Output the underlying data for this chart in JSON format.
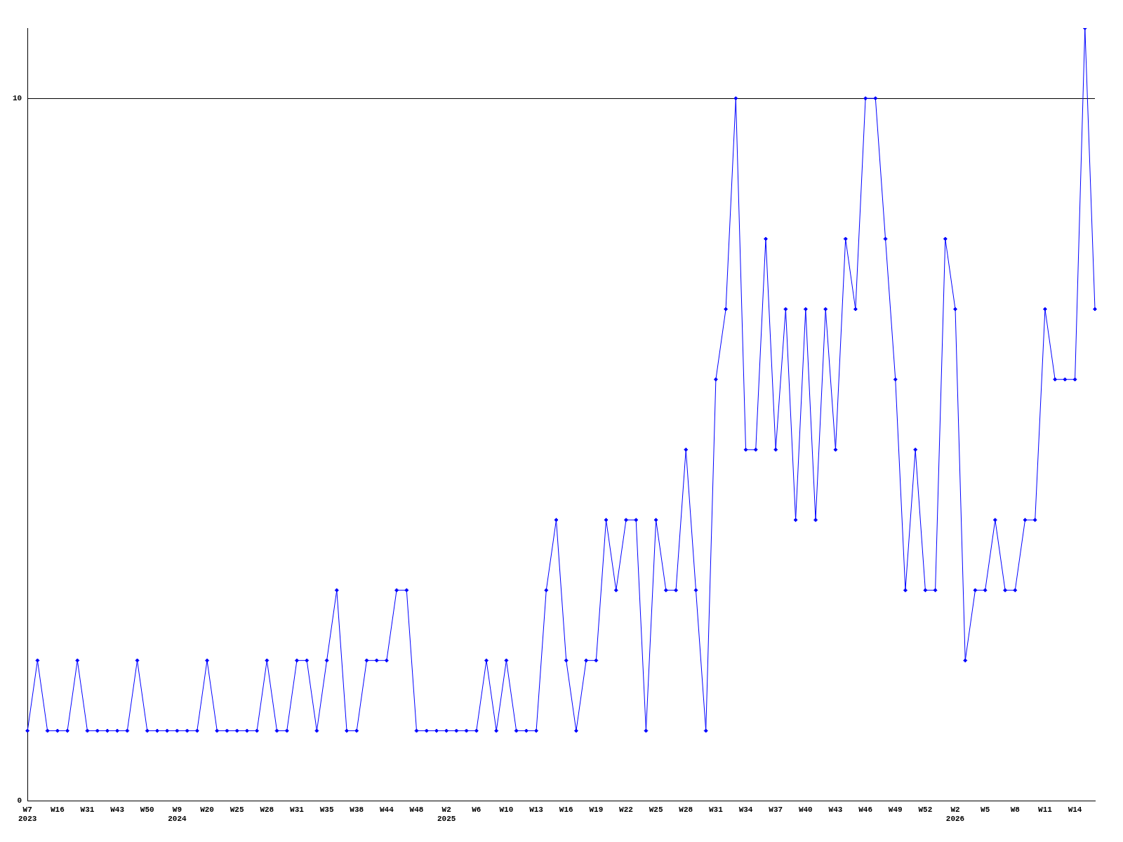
{
  "chart_data": {
    "type": "line",
    "categories": [
      "W7\n2023",
      null,
      null,
      "W16",
      null,
      null,
      "W31",
      null,
      null,
      "W43",
      null,
      null,
      "W50",
      null,
      null,
      "W9\n2024",
      null,
      null,
      "W20",
      null,
      null,
      "W25",
      null,
      null,
      "W28",
      null,
      null,
      "W31",
      null,
      null,
      "W35",
      null,
      null,
      "W38",
      null,
      null,
      "W44",
      null,
      null,
      "W48",
      null,
      null,
      "W2\n2025",
      null,
      null,
      "W6",
      null,
      null,
      "W10",
      null,
      null,
      "W13",
      null,
      null,
      "W16",
      null,
      null,
      "W19",
      null,
      null,
      "W22",
      null,
      null,
      "W25",
      null,
      null,
      "W28",
      null,
      null,
      "W31",
      null,
      null,
      "W34",
      null,
      null,
      "W37",
      null,
      null,
      "W40",
      null,
      null,
      "W43",
      null,
      null,
      "W46",
      null,
      null,
      "W49",
      null,
      null,
      "W52",
      null,
      null,
      "W2\n2026",
      null,
      null,
      "W5",
      null,
      null,
      "W8",
      null,
      null,
      "W11",
      null,
      null,
      "W14",
      null,
      null
    ],
    "series": [
      {
        "color": "#0000ff",
        "values": [
          1,
          2,
          1,
          1,
          1,
          2,
          1,
          1,
          1,
          1,
          1,
          2,
          1,
          1,
          1,
          1,
          1,
          1,
          2,
          1,
          1,
          1,
          1,
          1,
          2,
          1,
          1,
          2,
          2,
          1,
          2,
          3,
          1,
          1,
          2,
          2,
          2,
          3,
          3,
          1,
          1,
          1,
          1,
          1,
          1,
          1,
          2,
          1,
          2,
          1,
          1,
          1,
          3,
          4,
          2,
          1,
          2,
          2,
          4,
          3,
          4,
          4,
          1,
          4,
          3,
          3,
          5,
          3,
          1,
          6,
          7,
          10,
          5,
          5,
          8,
          5,
          7,
          4,
          7,
          4,
          7,
          5,
          8,
          7,
          10,
          10,
          8,
          6,
          3,
          5,
          3,
          3,
          8,
          7,
          2,
          3,
          3,
          4,
          3,
          3,
          4,
          4,
          7,
          6,
          6,
          6,
          11,
          7
        ]
      }
    ],
    "ylim": [
      0,
      11
    ],
    "yticks": [
      0,
      10
    ],
    "grid": "y",
    "legend": false,
    "marker": "diamond",
    "line_style": "solid"
  }
}
